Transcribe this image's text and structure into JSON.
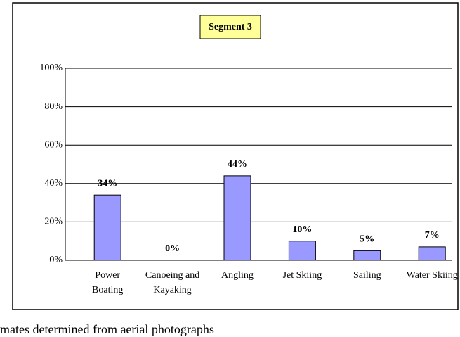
{
  "chart_data": {
    "type": "bar",
    "title": "Segment 3",
    "categories": [
      "Power Boating",
      "Canoeing and Kayaking",
      "Angling",
      "Jet Skiing",
      "Sailing",
      "Water Skiing"
    ],
    "values": [
      34,
      0,
      44,
      10,
      5,
      7
    ],
    "value_labels": [
      "34%",
      "0%",
      "44%",
      "10%",
      "5%",
      "7%"
    ],
    "color": "#9999ff",
    "ylim": [
      0,
      100
    ],
    "yticks": [
      {
        "value": 0,
        "label": "0%"
      },
      {
        "value": 20,
        "label": "20%"
      },
      {
        "value": 40,
        "label": "40%"
      },
      {
        "value": 60,
        "label": "60%"
      },
      {
        "value": 80,
        "label": "80%"
      },
      {
        "value": 100,
        "label": "100%"
      }
    ],
    "grid": true
  },
  "caption": "mates determined from aerial photographs"
}
